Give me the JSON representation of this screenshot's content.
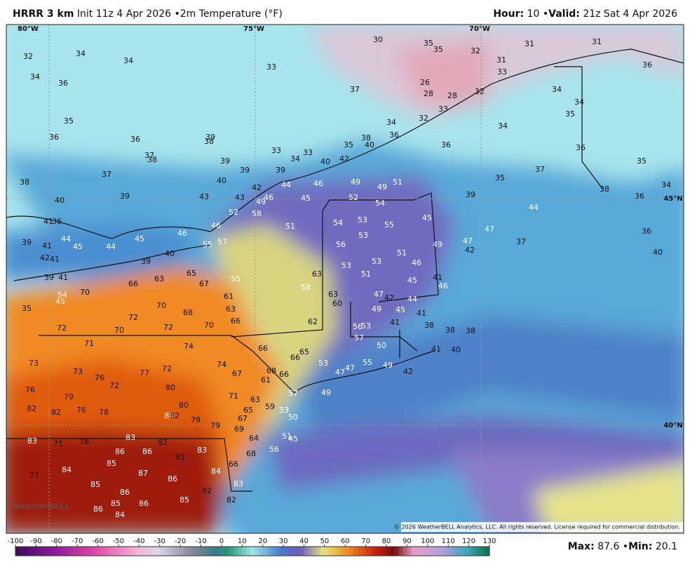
{
  "header": {
    "model": "HRRR 3 km",
    "init": "Init 11z 4 Apr 2026",
    "field": "2m Temperature (°F)",
    "hour_label": "Hour:",
    "hour": "10",
    "valid_label": "Valid:",
    "valid": "21z Sat 4 Apr 2026"
  },
  "map": {
    "graticule": [
      "80°W",
      "75°W",
      "70°W",
      "45°N",
      "40°N"
    ],
    "labels": [
      32,
      34,
      34,
      33,
      30,
      35,
      35,
      32,
      31,
      31,
      31,
      36,
      34,
      36,
      37,
      26,
      28,
      28,
      32,
      33,
      34,
      34,
      35,
      33,
      32,
      34,
      35,
      36,
      36,
      39,
      38,
      34,
      35,
      38,
      36,
      40,
      36,
      36,
      33,
      33,
      34,
      40,
      42,
      37,
      38,
      39,
      39,
      39,
      37,
      37,
      35,
      35,
      40,
      44,
      46,
      49,
      49,
      51,
      38,
      42,
      43,
      45,
      52,
      54,
      39,
      38,
      36,
      34,
      40,
      39,
      43,
      49,
      46,
      52,
      58,
      45,
      44,
      41,
      36,
      54,
      53,
      55,
      46,
      46,
      51,
      47,
      53,
      39,
      41,
      44,
      45,
      44,
      45,
      55,
      57,
      56,
      49,
      47,
      42,
      37,
      36,
      42,
      41,
      40,
      39,
      51,
      53,
      53,
      51,
      46,
      40,
      39,
      41,
      65,
      63,
      45,
      41,
      55,
      58,
      67,
      66,
      63,
      46,
      54,
      70,
      45,
      61,
      63,
      47,
      42,
      44,
      35,
      70,
      68,
      63,
      60,
      49,
      45,
      41,
      72,
      62,
      56,
      53,
      41,
      38,
      66,
      70,
      72,
      72,
      70,
      57,
      38,
      38,
      41,
      40,
      50,
      74,
      71,
      65,
      66,
      66,
      53,
      55,
      49,
      42,
      74,
      67,
      68,
      66,
      61,
      47,
      47,
      73,
      73,
      77,
      72,
      76,
      72,
      80,
      76,
      79,
      71,
      63,
      59,
      53,
      49,
      57,
      82,
      82,
      76,
      78,
      80,
      65,
      50,
      88,
      82,
      79,
      79,
      69,
      67,
      51,
      45,
      83,
      71,
      78,
      83,
      82,
      64,
      86,
      86,
      83,
      56,
      68,
      84,
      85,
      81,
      66,
      87,
      84,
      77,
      86,
      85,
      83,
      86,
      82,
      85,
      82,
      86,
      85,
      86,
      84
    ],
    "watermark": "WeatherBELL",
    "copyright": "© 2026 WeatherBELL Analytics, LLC. All rights reserved. License required for commercial distribution."
  },
  "colorbar": {
    "ticks": [
      -100,
      -90,
      -80,
      -70,
      -60,
      -50,
      -40,
      -30,
      -20,
      -10,
      0,
      10,
      20,
      30,
      40,
      50,
      60,
      70,
      80,
      90,
      100,
      110,
      120,
      130
    ]
  },
  "footer": {
    "max_label": "Max:",
    "max": "87.6",
    "min_label": "Min:",
    "min": "20.1"
  }
}
